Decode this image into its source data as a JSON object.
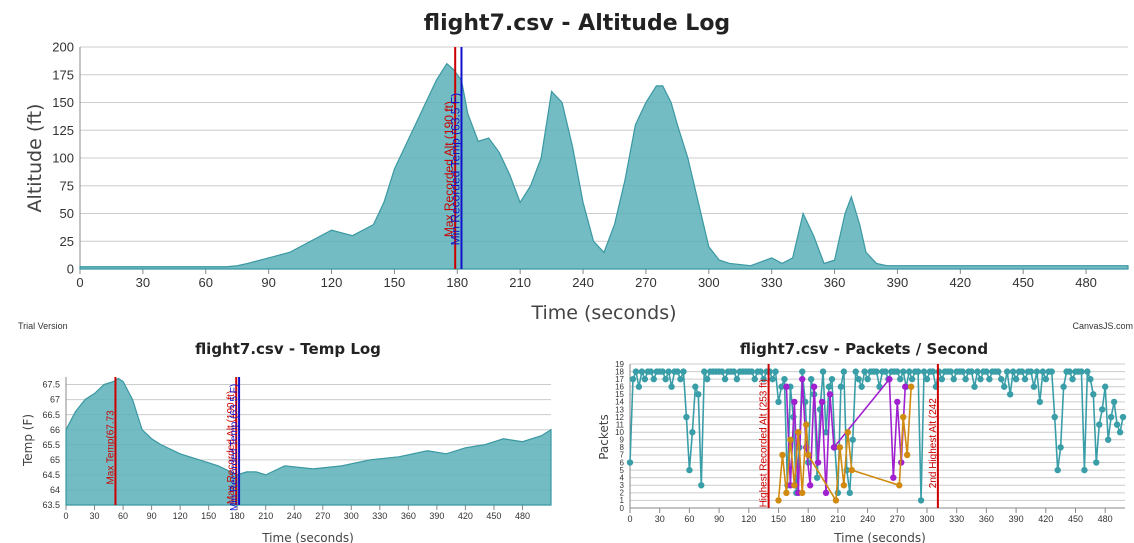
{
  "footer": {
    "trial": "Trial Version",
    "credit": "CanvasJS.com"
  },
  "colors": {
    "area": "#5ab0b9",
    "area_line": "#3a98a2",
    "grid": "#cccccc",
    "red": "#cc0000",
    "blue": "#1111cc",
    "teal_pts": "#3a9ea8",
    "purple": "#a020d0",
    "orange": "#d08a10"
  },
  "chart_data": [
    {
      "type": "area",
      "title": "flight7.csv - Altitude Log",
      "xlabel": "Time (seconds)",
      "ylabel": "Altitude (ft)",
      "xlim": [
        0,
        500
      ],
      "ylim": [
        0,
        200
      ],
      "xticks": [
        0,
        30,
        60,
        90,
        120,
        150,
        180,
        210,
        240,
        270,
        300,
        330,
        360,
        390,
        420,
        450,
        480
      ],
      "yticks": [
        0,
        25,
        50,
        75,
        100,
        125,
        150,
        175,
        200
      ],
      "x": [
        0,
        20,
        40,
        60,
        70,
        75,
        80,
        90,
        100,
        110,
        120,
        130,
        140,
        145,
        150,
        155,
        160,
        165,
        170,
        175,
        178,
        180,
        182,
        185,
        190,
        195,
        200,
        205,
        210,
        215,
        220,
        225,
        230,
        235,
        240,
        245,
        250,
        255,
        260,
        265,
        270,
        275,
        278,
        282,
        285,
        290,
        295,
        300,
        305,
        310,
        320,
        330,
        335,
        340,
        345,
        350,
        355,
        360,
        365,
        368,
        372,
        375,
        380,
        385,
        390,
        400,
        450,
        500
      ],
      "y": [
        2,
        2,
        2,
        2,
        2,
        3,
        5,
        10,
        15,
        25,
        35,
        30,
        40,
        60,
        90,
        110,
        130,
        150,
        170,
        185,
        180,
        175,
        170,
        140,
        115,
        118,
        105,
        85,
        60,
        75,
        100,
        160,
        150,
        110,
        60,
        25,
        15,
        40,
        80,
        130,
        150,
        165,
        165,
        150,
        130,
        100,
        60,
        20,
        8,
        5,
        3,
        10,
        5,
        10,
        50,
        30,
        5,
        8,
        50,
        65,
        40,
        15,
        5,
        3,
        3,
        3,
        3,
        3
      ],
      "annotations": [
        {
          "x": 179,
          "label": "Max Recorded Alt (190 ft)",
          "color": "#cc0000"
        },
        {
          "x": 182,
          "label": "Min Recorded Temp (63.5 F)",
          "color": "#1111cc"
        }
      ]
    },
    {
      "type": "area",
      "title": "flight7.csv - Temp Log",
      "xlabel": "Time (seconds)",
      "ylabel": "Temp (F)",
      "xlim": [
        0,
        510
      ],
      "ylim": [
        63.5,
        67.75
      ],
      "xticks": [
        0,
        30,
        60,
        90,
        120,
        150,
        180,
        210,
        240,
        270,
        300,
        330,
        360,
        390,
        420,
        450,
        480
      ],
      "yticks": [
        63.5,
        64,
        64.5,
        65,
        65.5,
        66,
        66.5,
        67,
        67.5
      ],
      "x": [
        0,
        10,
        20,
        30,
        40,
        50,
        55,
        60,
        70,
        80,
        90,
        100,
        120,
        140,
        160,
        180,
        190,
        200,
        210,
        230,
        260,
        290,
        320,
        350,
        380,
        400,
        420,
        440,
        460,
        480,
        500,
        510
      ],
      "y": [
        66,
        66.6,
        67,
        67.2,
        67.5,
        67.6,
        67.7,
        67.6,
        67,
        66,
        65.7,
        65.5,
        65.2,
        65,
        64.8,
        64.5,
        64.6,
        64.6,
        64.5,
        64.8,
        64.7,
        64.8,
        65,
        65.1,
        65.3,
        65.2,
        65.4,
        65.5,
        65.7,
        65.6,
        65.8,
        66
      ],
      "annotations": [
        {
          "x": 52,
          "label": "Max Temp(67.73",
          "color": "#cc0000"
        },
        {
          "x": 179,
          "label": "Max Recorded Alt (190 ft)",
          "color": "#cc0000"
        },
        {
          "x": 182,
          "label": "Min Recorded Temp (63.5 F)",
          "color": "#1111cc"
        }
      ]
    },
    {
      "type": "line",
      "title": "flight7.csv - Packets / Second",
      "xlabel": "Time (seconds)",
      "ylabel": "Packets",
      "xlim": [
        0,
        500
      ],
      "ylim": [
        0,
        19
      ],
      "xticks": [
        0,
        30,
        60,
        90,
        120,
        150,
        180,
        210,
        240,
        270,
        300,
        330,
        360,
        390,
        420,
        450,
        480
      ],
      "yticks": [
        0,
        1,
        2,
        3,
        4,
        5,
        6,
        7,
        8,
        9,
        10,
        11,
        12,
        13,
        14,
        15,
        16,
        17,
        18,
        19
      ],
      "series": [
        {
          "color": "#3a9ea8",
          "x": [
            0,
            3,
            6,
            9,
            12,
            15,
            18,
            21,
            24,
            27,
            30,
            33,
            36,
            39,
            42,
            45,
            48,
            51,
            54,
            57,
            60,
            63,
            66,
            69,
            72,
            75,
            78,
            81,
            84,
            87,
            90,
            93,
            96,
            99,
            102,
            105,
            108,
            111,
            114,
            117,
            120,
            123,
            126,
            129,
            132,
            135,
            138,
            141,
            144,
            147,
            150,
            153,
            156,
            159,
            162,
            165,
            168,
            171,
            174,
            177,
            180,
            183,
            186,
            189,
            192,
            195,
            198,
            201,
            204,
            207,
            210,
            213,
            216,
            219,
            222,
            225,
            228,
            231,
            234,
            237,
            240,
            243,
            246,
            249,
            252,
            255,
            258,
            261,
            264,
            267,
            270,
            273,
            276,
            279,
            282,
            285,
            288,
            291,
            294,
            297,
            300,
            303,
            306,
            309,
            312,
            315,
            318,
            321,
            324,
            327,
            330,
            333,
            336,
            339,
            342,
            345,
            348,
            351,
            354,
            357,
            360,
            363,
            366,
            369,
            372,
            375,
            378,
            381,
            384,
            387,
            390,
            393,
            396,
            399,
            402,
            405,
            408,
            411,
            414,
            417,
            420,
            423,
            426,
            429,
            432,
            435,
            438,
            441,
            444,
            447,
            450,
            453,
            456,
            459,
            462,
            465,
            468,
            471,
            474,
            477,
            480,
            483,
            486,
            489,
            492,
            495,
            498
          ],
          "y": [
            6,
            17,
            18,
            16,
            18,
            17,
            18,
            18,
            17,
            18,
            18,
            18,
            17,
            18,
            16,
            18,
            18,
            17,
            18,
            12,
            5,
            10,
            16,
            15,
            3,
            18,
            17,
            18,
            18,
            18,
            18,
            18,
            17,
            18,
            18,
            18,
            17,
            18,
            18,
            18,
            18,
            18,
            17,
            18,
            18,
            17,
            18,
            18,
            17,
            18,
            14,
            16,
            17,
            3,
            16,
            12,
            2,
            8,
            18,
            14,
            6,
            17,
            15,
            4,
            13,
            18,
            10,
            16,
            17,
            8,
            2,
            16,
            18,
            5,
            2,
            9,
            18,
            17,
            16,
            18,
            17,
            18,
            18,
            18,
            16,
            18,
            18,
            17,
            18,
            18,
            18,
            17,
            18,
            16,
            18,
            17,
            18,
            18,
            1,
            18,
            17,
            18,
            18,
            16,
            18,
            17,
            18,
            18,
            18,
            17,
            18,
            18,
            18,
            17,
            18,
            18,
            16,
            18,
            17,
            18,
            18,
            17,
            18,
            18,
            18,
            17,
            16,
            18,
            15,
            18,
            17,
            18,
            18,
            17,
            18,
            18,
            16,
            18,
            14,
            18,
            17,
            18,
            18,
            12,
            5,
            8,
            16,
            18,
            18,
            17,
            18,
            18,
            18,
            5,
            18,
            17,
            15,
            6,
            11,
            13,
            16,
            9,
            12,
            14,
            11,
            10,
            12
          ]
        },
        {
          "color": "#a020d0",
          "x": [
            158,
            162,
            166,
            170,
            174,
            178,
            182,
            186,
            190,
            194,
            198,
            202,
            206,
            262,
            266,
            270,
            274,
            278
          ],
          "y": [
            16,
            3,
            14,
            2,
            17,
            8,
            3,
            16,
            6,
            14,
            2,
            15,
            8,
            17,
            4,
            14,
            6,
            16
          ]
        },
        {
          "color": "#d08a10",
          "x": [
            150,
            154,
            158,
            162,
            166,
            170,
            174,
            178,
            180,
            208,
            212,
            216,
            220,
            224,
            272,
            276,
            280,
            284
          ],
          "y": [
            1,
            7,
            2,
            9,
            3,
            10,
            2,
            11,
            7,
            1,
            8,
            3,
            10,
            5,
            3,
            12,
            7,
            16
          ]
        }
      ],
      "annotations": [
        {
          "x": 140,
          "label": "Highest Recorded Alt (253 ft)",
          "color": "#cc0000"
        },
        {
          "x": 311,
          "label": "2nd Highest Alt (242",
          "color": "#cc0000"
        }
      ]
    }
  ]
}
